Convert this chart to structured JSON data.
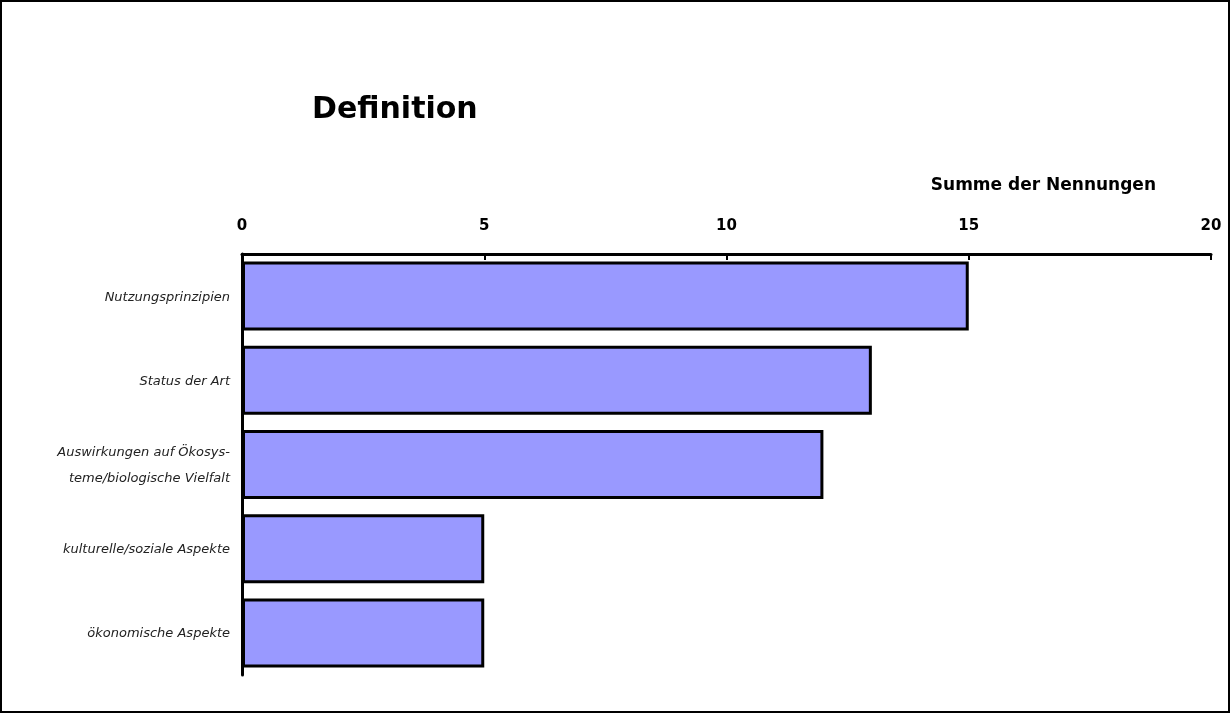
{
  "chart_data": {
    "type": "bar",
    "orientation": "horizontal",
    "title": "Definition",
    "xlabel": "Summe der Nennungen",
    "categories": [
      "Nutzungsprinzipien",
      "Status der Art",
      "Auswirkungen auf Ökosys-\nteme/biologische Vielfalt",
      "kulturelle/soziale Aspekte",
      "ökonomische Aspekte"
    ],
    "values": [
      15,
      13,
      12,
      5,
      5
    ],
    "color": "#9999ff",
    "xlim": [
      0,
      20
    ],
    "xticks": [
      0,
      5,
      10,
      15,
      20
    ],
    "grid": false
  }
}
